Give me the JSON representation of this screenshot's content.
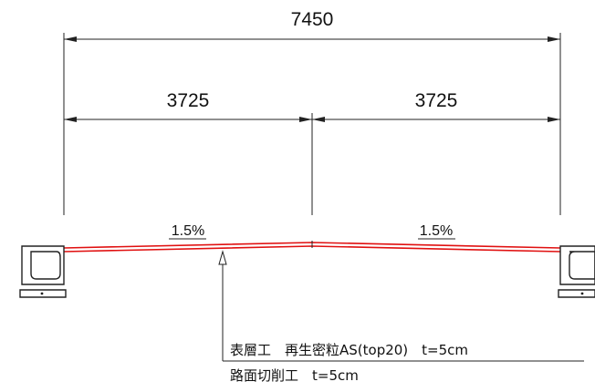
{
  "dimensions": {
    "overall_width": "7450",
    "left_half": "3725",
    "right_half": "3725"
  },
  "slopes": {
    "left": "1.5%",
    "right": "1.5%"
  },
  "notes": {
    "surface_course": "表層工　再生密粒AS(top20)　t=5cm",
    "milling": "路面切削工　t=5cm"
  },
  "colors": {
    "pavement_line": "#e01010",
    "linework": "#222222"
  }
}
